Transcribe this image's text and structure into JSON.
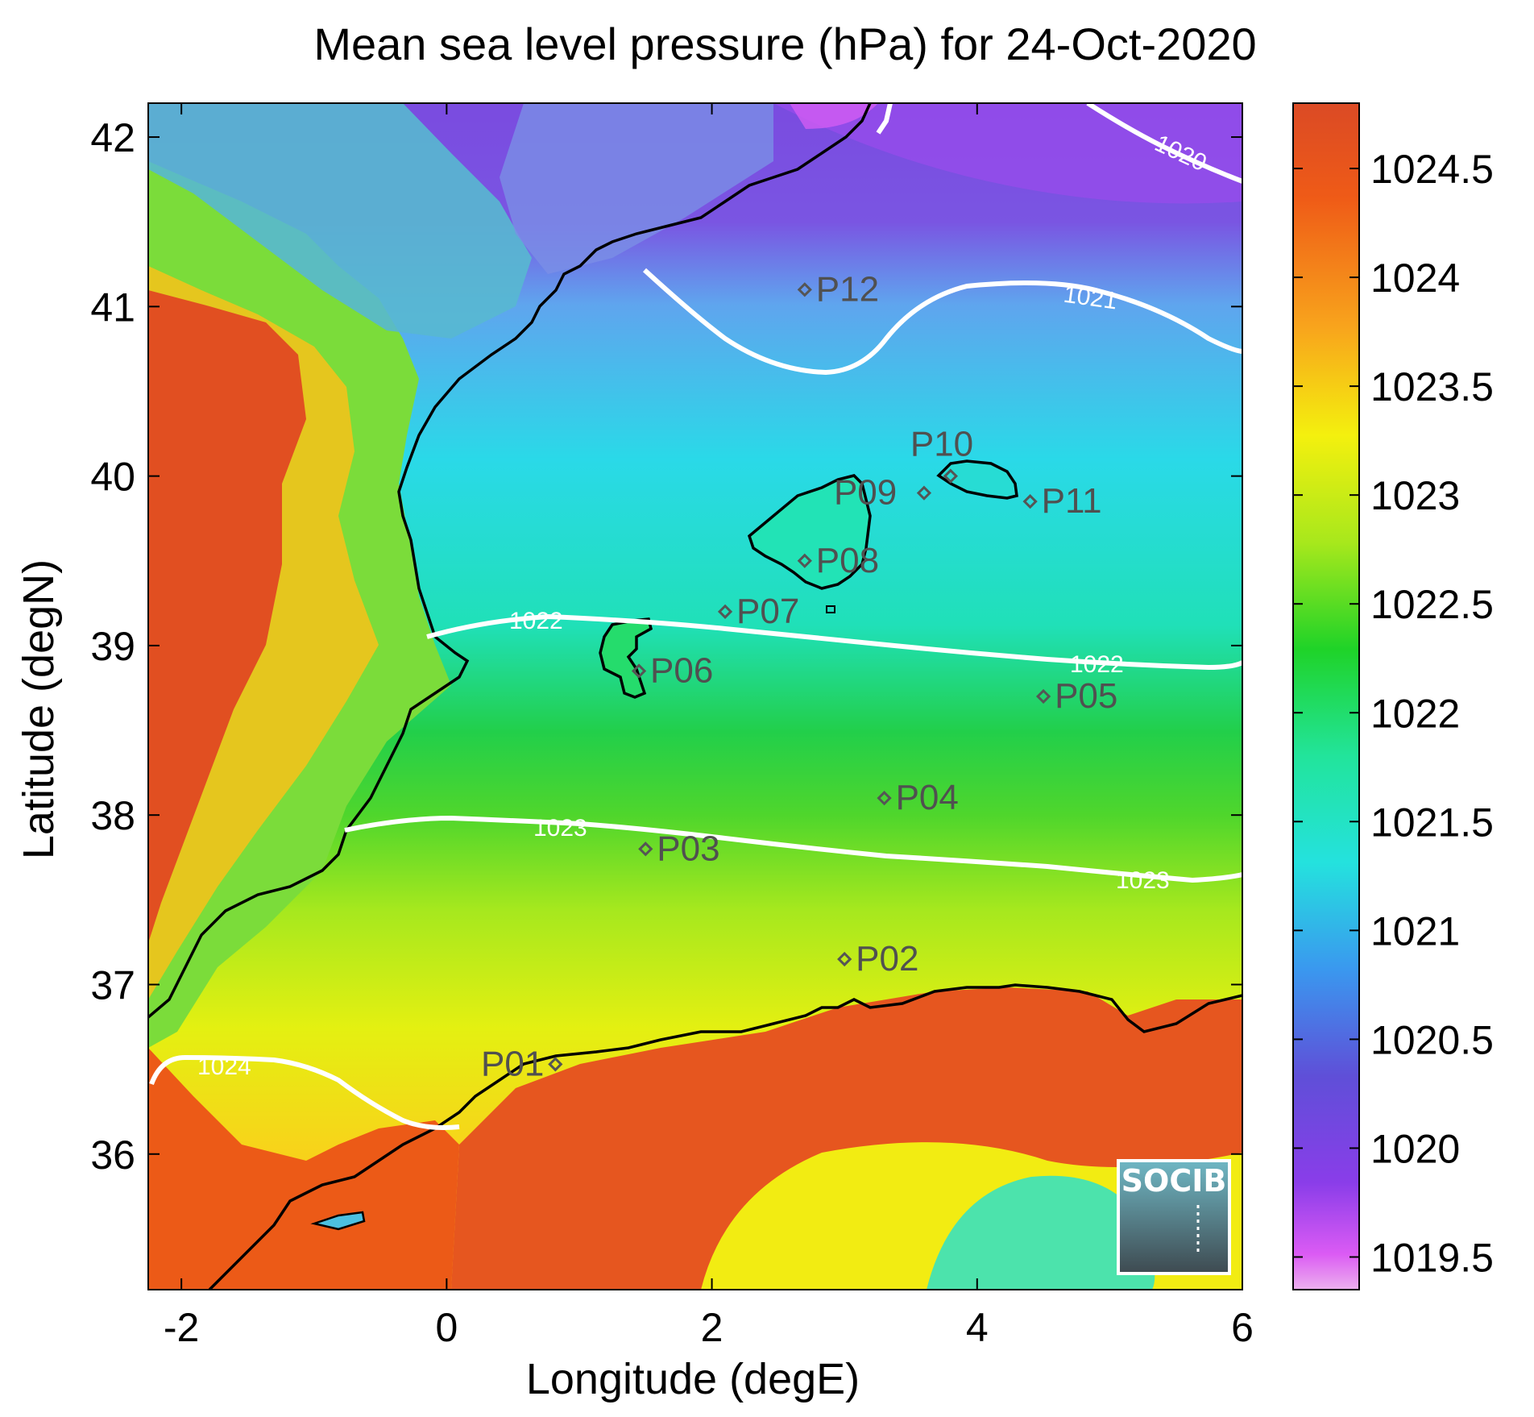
{
  "title": "Mean sea level pressure (hPa) for 24-Oct-2020",
  "xlabel": "Longitude (degE)",
  "ylabel": "Latitude (degN)",
  "x_ticks": [
    "-2",
    "0",
    "2",
    "4",
    "6"
  ],
  "y_ticks": [
    "42",
    "41",
    "40",
    "39",
    "38",
    "37",
    "36"
  ],
  "colorbar_ticks": [
    "1024.5",
    "1024",
    "1023.5",
    "1023",
    "1022.5",
    "1022",
    "1021.5",
    "1021",
    "1020.5",
    "1020",
    "1019.5"
  ],
  "colorbar_range": [
    1019.35,
    1024.8
  ],
  "contour_labels": [
    "1020",
    "1021",
    "1022",
    "1022",
    "1023",
    "1023",
    "1024"
  ],
  "points": [
    {
      "label": "P01",
      "lon": 0.82,
      "lat": 36.53
    },
    {
      "label": "P02",
      "lon": 3.0,
      "lat": 37.15
    },
    {
      "label": "P03",
      "lon": 1.5,
      "lat": 37.8
    },
    {
      "label": "P04",
      "lon": 3.3,
      "lat": 38.1
    },
    {
      "label": "P05",
      "lon": 4.5,
      "lat": 38.7
    },
    {
      "label": "P06",
      "lon": 1.45,
      "lat": 38.85
    },
    {
      "label": "P07",
      "lon": 2.1,
      "lat": 39.2
    },
    {
      "label": "P08",
      "lon": 2.7,
      "lat": 39.5
    },
    {
      "label": "P09",
      "lon": 3.6,
      "lat": 39.9
    },
    {
      "label": "P10",
      "lon": 3.8,
      "lat": 40.0
    },
    {
      "label": "P11",
      "lon": 4.4,
      "lat": 39.85
    },
    {
      "label": "P12",
      "lon": 2.7,
      "lat": 41.1
    }
  ],
  "logo": {
    "text": "SOCIB"
  },
  "colors": {
    "contour": "#ffffff",
    "coast": "#000000",
    "marker": "#555555"
  }
}
